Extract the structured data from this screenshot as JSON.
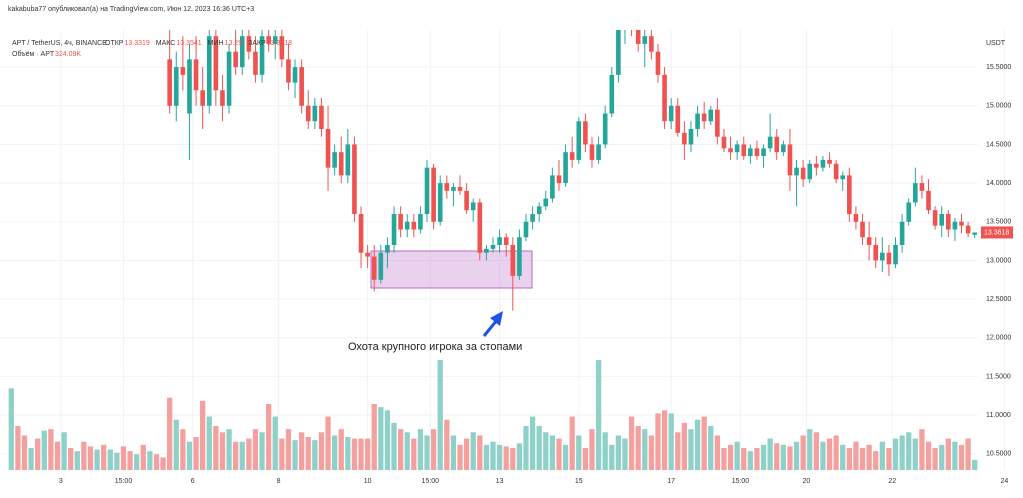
{
  "header": {
    "publisher": "kakabuba77 опубликовал(а) на TradingView.com, Июн 12, 2023 16:36 UTC+3"
  },
  "chart_data": {
    "type": "candlestick",
    "title": "APT / TetherUS, 4ч, BINANCE",
    "ohlc_labels": [
      "ОТКР",
      "МАКС",
      "МИН",
      "ЗАКР"
    ],
    "volume_title": "Объём · APT",
    "volume_label": "324.09K",
    "currency": "USDT",
    "annotation": "Охота крупного игрока за стопами",
    "up_color": "#26a69a",
    "down_color": "#ef5350",
    "volume_up_color": "#8fd1c8",
    "volume_down_color": "#f4a09e",
    "grid": true,
    "xlim": [
      -0.5,
      151.5
    ],
    "xticks": [
      {
        "value": 7.5,
        "label": "3"
      },
      {
        "value": 17,
        "label": "15:00"
      },
      {
        "value": 27.5,
        "label": "6"
      },
      {
        "value": 40.5,
        "label": "8"
      },
      {
        "value": 54,
        "label": "10"
      },
      {
        "value": 63.5,
        "label": "15:00"
      },
      {
        "value": 74,
        "label": "13"
      },
      {
        "value": 86,
        "label": "15"
      },
      {
        "value": 100,
        "label": "17"
      },
      {
        "value": 110.5,
        "label": "15:00"
      },
      {
        "value": 120.5,
        "label": "20"
      },
      {
        "value": 133.5,
        "label": "22"
      },
      {
        "value": 150.5,
        "label": "24"
      }
    ],
    "ylim": [
      10.29,
      15.98
    ],
    "yticks": [
      {
        "value": 10.5,
        "label": "10.5000"
      },
      {
        "value": 11,
        "label": "11.0000"
      },
      {
        "value": 11.5,
        "label": "11.5000"
      },
      {
        "value": 12,
        "label": "12.0000"
      },
      {
        "value": 12.5,
        "label": "12.5000"
      },
      {
        "value": 13,
        "label": "13.0000"
      },
      {
        "value": 13.5,
        "label": "13.5000"
      },
      {
        "value": 14,
        "label": "14.0000"
      },
      {
        "value": 14.5,
        "label": "14.5000"
      },
      {
        "value": 15,
        "label": "15.0000"
      },
      {
        "value": 15.5,
        "label": "15.5000"
      }
    ],
    "vlim": [
      0,
      14000
    ],
    "ohlc": [
      null,
      null,
      null,
      null,
      null,
      null,
      null,
      null,
      null,
      null,
      null,
      null,
      null,
      null,
      null,
      null,
      null,
      null,
      null,
      null,
      null,
      null,
      null,
      null,
      [
        15.6,
        16.1,
        14.9,
        15.0
      ],
      [
        15.0,
        15.7,
        14.8,
        15.5
      ],
      [
        15.5,
        15.9,
        15.2,
        15.4
      ],
      [
        14.9,
        15.8,
        14.3,
        15.6
      ],
      [
        15.6,
        15.9,
        15.0,
        15.2
      ],
      [
        15.2,
        15.5,
        14.7,
        15.0
      ],
      [
        15.0,
        16.0,
        14.9,
        15.9
      ],
      [
        15.9,
        16.1,
        15.0,
        15.2
      ],
      [
        15.2,
        15.4,
        14.8,
        15.0
      ],
      [
        15.0,
        15.8,
        14.9,
        15.7
      ],
      [
        15.7,
        16.1,
        15.4,
        15.5
      ],
      [
        15.5,
        16.0,
        15.4,
        15.9
      ],
      [
        15.9,
        16.2,
        15.6,
        15.7
      ],
      [
        15.7,
        15.9,
        15.3,
        15.4
      ],
      [
        15.4,
        16.0,
        15.3,
        15.9
      ],
      [
        15.9,
        16.2,
        15.7,
        15.8
      ],
      [
        15.8,
        16.1,
        15.6,
        15.9
      ],
      [
        15.9,
        16.0,
        15.5,
        15.6
      ],
      [
        15.6,
        15.8,
        15.2,
        15.3
      ],
      [
        15.3,
        15.6,
        15.1,
        15.5
      ],
      [
        15.5,
        15.6,
        14.9,
        15.0
      ],
      [
        15.0,
        15.2,
        14.7,
        14.8
      ],
      [
        14.8,
        15.1,
        14.7,
        15.0
      ],
      [
        15.0,
        15.1,
        14.6,
        14.7
      ],
      [
        14.7,
        15.0,
        13.9,
        14.2
      ],
      [
        14.2,
        14.5,
        14.1,
        14.4
      ],
      [
        14.4,
        14.6,
        14.0,
        14.1
      ],
      [
        14.1,
        14.7,
        14.0,
        14.5
      ],
      [
        14.5,
        14.6,
        13.5,
        13.6
      ],
      [
        13.6,
        13.7,
        12.9,
        13.1
      ],
      [
        13.1,
        13.2,
        12.9,
        13.05
      ],
      [
        13.05,
        13.2,
        12.6,
        12.75
      ],
      [
        12.75,
        13.2,
        12.7,
        13.1
      ],
      [
        13.1,
        13.3,
        12.9,
        13.2
      ],
      [
        13.2,
        13.7,
        13.1,
        13.6
      ],
      [
        13.6,
        13.7,
        13.3,
        13.4
      ],
      [
        13.4,
        13.6,
        13.3,
        13.5
      ],
      [
        13.5,
        13.6,
        13.3,
        13.4
      ],
      [
        13.4,
        13.7,
        13.35,
        13.6
      ],
      [
        13.6,
        14.3,
        13.5,
        14.2
      ],
      [
        14.2,
        14.25,
        13.4,
        13.5
      ],
      [
        13.5,
        14.1,
        13.45,
        14.0
      ],
      [
        14.0,
        14.1,
        13.8,
        13.9
      ],
      [
        13.9,
        14.0,
        13.7,
        13.95
      ],
      [
        13.95,
        14.1,
        13.85,
        13.9
      ],
      [
        13.9,
        14.0,
        13.6,
        13.65
      ],
      [
        13.65,
        13.8,
        13.5,
        13.75
      ],
      [
        13.75,
        13.8,
        13.0,
        13.1
      ],
      [
        13.1,
        13.2,
        13.0,
        13.15
      ],
      [
        13.15,
        13.3,
        13.1,
        13.2
      ],
      [
        13.2,
        13.4,
        13.1,
        13.3
      ],
      [
        13.3,
        13.35,
        13.05,
        13.2
      ],
      [
        13.2,
        13.3,
        12.35,
        12.8
      ],
      [
        12.8,
        13.4,
        12.75,
        13.3
      ],
      [
        13.3,
        13.6,
        13.25,
        13.5
      ],
      [
        13.5,
        13.7,
        13.4,
        13.6
      ],
      [
        13.6,
        13.75,
        13.5,
        13.7
      ],
      [
        13.7,
        13.9,
        13.65,
        13.8
      ],
      [
        13.8,
        14.2,
        13.75,
        14.1
      ],
      [
        14.1,
        14.3,
        13.9,
        14.0
      ],
      [
        14.0,
        14.5,
        13.95,
        14.4
      ],
      [
        14.4,
        14.6,
        14.2,
        14.3
      ],
      [
        14.3,
        14.85,
        14.25,
        14.8
      ],
      [
        14.8,
        14.9,
        14.4,
        14.5
      ],
      [
        14.5,
        14.6,
        14.2,
        14.3
      ],
      [
        14.3,
        14.6,
        14.25,
        14.5
      ],
      [
        14.5,
        15.0,
        14.45,
        14.9
      ],
      [
        14.9,
        15.5,
        14.85,
        15.4
      ],
      [
        15.4,
        16.2,
        15.3,
        16.1
      ],
      [
        16.1,
        16.3,
        15.8,
        16.2
      ],
      [
        16.2,
        16.4,
        15.9,
        16.0
      ],
      [
        16.0,
        16.2,
        15.7,
        15.8
      ],
      [
        15.8,
        16.0,
        15.5,
        15.9
      ],
      [
        15.9,
        16.0,
        15.6,
        15.7
      ],
      [
        15.7,
        15.8,
        15.3,
        15.4
      ],
      [
        15.4,
        15.5,
        14.7,
        14.8
      ],
      [
        14.8,
        15.1,
        14.7,
        15.0
      ],
      [
        15.0,
        15.1,
        14.6,
        14.65
      ],
      [
        14.65,
        14.8,
        14.3,
        14.5
      ],
      [
        14.5,
        14.8,
        14.4,
        14.7
      ],
      [
        14.7,
        15.0,
        14.6,
        14.9
      ],
      [
        14.9,
        15.05,
        14.7,
        14.8
      ],
      [
        14.8,
        15.0,
        14.75,
        14.95
      ],
      [
        14.95,
        15.1,
        14.5,
        14.6
      ],
      [
        14.6,
        14.7,
        14.4,
        14.45
      ],
      [
        14.45,
        14.6,
        14.3,
        14.4
      ],
      [
        14.4,
        14.55,
        14.3,
        14.5
      ],
      [
        14.5,
        14.6,
        14.3,
        14.35
      ],
      [
        14.35,
        14.5,
        14.25,
        14.45
      ],
      [
        14.45,
        14.55,
        14.3,
        14.35
      ],
      [
        14.35,
        14.5,
        14.2,
        14.45
      ],
      [
        14.45,
        14.9,
        14.4,
        14.6
      ],
      [
        14.6,
        14.7,
        14.3,
        14.4
      ],
      [
        14.4,
        14.55,
        14.35,
        14.5
      ],
      [
        14.5,
        14.7,
        13.9,
        14.1
      ],
      [
        14.1,
        14.3,
        13.7,
        14.2
      ],
      [
        14.2,
        14.3,
        13.95,
        14.05
      ],
      [
        14.05,
        14.3,
        14.0,
        14.25
      ],
      [
        14.25,
        14.35,
        14.1,
        14.2
      ],
      [
        14.2,
        14.35,
        14.15,
        14.3
      ],
      [
        14.3,
        14.4,
        14.2,
        14.25
      ],
      [
        14.25,
        14.3,
        14.0,
        14.05
      ],
      [
        14.05,
        14.15,
        13.9,
        14.1
      ],
      [
        14.1,
        14.2,
        13.5,
        13.6
      ],
      [
        13.6,
        13.7,
        13.4,
        13.5
      ],
      [
        13.5,
        13.6,
        13.2,
        13.3
      ],
      [
        13.3,
        13.5,
        13.0,
        13.2
      ],
      [
        13.2,
        13.3,
        12.9,
        13.0
      ],
      [
        13.0,
        13.3,
        12.85,
        13.1
      ],
      [
        13.1,
        13.2,
        12.8,
        12.95
      ],
      [
        12.95,
        13.3,
        12.9,
        13.2
      ],
      [
        13.2,
        13.6,
        13.1,
        13.5
      ],
      [
        13.5,
        13.8,
        13.45,
        13.75
      ],
      [
        13.75,
        14.2,
        13.7,
        14.0
      ],
      [
        14.0,
        14.1,
        13.8,
        13.9
      ],
      [
        13.9,
        14.05,
        13.6,
        13.65
      ],
      [
        13.65,
        13.7,
        13.4,
        13.45
      ],
      [
        13.45,
        13.7,
        13.3,
        13.6
      ],
      [
        13.6,
        13.65,
        13.3,
        13.4
      ],
      [
        13.4,
        13.55,
        13.25,
        13.5
      ],
      [
        13.5,
        13.6,
        13.35,
        13.45
      ],
      [
        13.45,
        13.5,
        13.3,
        13.35
      ],
      [
        13.3319,
        13.3541,
        13.29,
        13.3618
      ]
    ],
    "volume": [
      2600,
      1400,
      1100,
      700,
      1000,
      1250,
      1300,
      900,
      1200,
      700,
      600,
      900,
      750,
      650,
      800,
      650,
      550,
      750,
      600,
      500,
      800,
      600,
      500,
      400,
      2300,
      1600,
      1300,
      900,
      1050,
      2200,
      1700,
      1400,
      1200,
      1300,
      900,
      900,
      1000,
      1300,
      1200,
      2100,
      1700,
      1000,
      1300,
      950,
      1200,
      1050,
      950,
      1200,
      1700,
      1100,
      1300,
      1050,
      1000,
      1000,
      1000,
      2100,
      2000,
      1900,
      1500,
      1300,
      1200,
      1000,
      1300,
      1100,
      1300,
      3500,
      1600,
      1100,
      800,
      1000,
      1200,
      1100,
      800,
      900,
      800,
      750,
      700,
      850,
      1400,
      1700,
      1400,
      1200,
      1100,
      1000,
      800,
      1700,
      1100,
      700,
      1300,
      3500,
      1200,
      800,
      1100,
      1000,
      1700,
      1400,
      1300,
      1100,
      1800,
      1900,
      1800,
      1200,
      1500,
      1300,
      1600,
      1700,
      1400,
      1100,
      700,
      800,
      900,
      700,
      600,
      700,
      800,
      1000,
      850,
      800,
      750,
      900,
      1100,
      1300,
      1200,
      900,
      1000,
      1100,
      800,
      700,
      900,
      700,
      800,
      600,
      900,
      700,
      1000,
      1100,
      1200,
      1000,
      1300,
      900,
      700,
      800,
      1000,
      900,
      800,
      1000,
      324.09
    ],
    "volume_up": [
      true,
      false,
      false,
      true,
      false,
      true,
      false,
      false,
      true,
      false,
      true,
      false,
      false,
      true,
      false,
      true,
      true,
      false,
      false,
      true,
      false,
      true,
      false,
      false,
      false,
      true,
      false,
      true,
      false,
      false,
      true,
      false,
      false,
      true,
      false,
      true,
      false,
      false,
      true,
      false,
      true,
      false,
      false,
      true,
      false,
      false,
      true,
      false,
      false,
      true,
      false,
      true,
      false,
      false,
      false,
      false,
      true,
      true,
      true,
      false,
      true,
      false,
      true,
      true,
      false,
      true,
      false,
      true,
      false,
      false,
      true,
      false,
      true,
      true,
      true,
      false,
      false,
      true,
      true,
      true,
      true,
      true,
      true,
      false,
      true,
      false,
      true,
      false,
      false,
      true,
      true,
      true,
      true,
      true,
      false,
      false,
      true,
      false,
      false,
      false,
      true,
      false,
      false,
      true,
      true,
      false,
      true,
      false,
      false,
      false,
      true,
      false,
      true,
      false,
      true,
      true,
      false,
      true,
      false,
      true,
      false,
      true,
      false,
      true,
      false,
      false,
      true,
      false,
      false,
      false,
      false,
      false,
      true,
      false,
      true,
      true,
      true,
      true,
      false,
      false,
      false,
      true,
      false,
      true,
      false,
      false,
      true
    ]
  }
}
